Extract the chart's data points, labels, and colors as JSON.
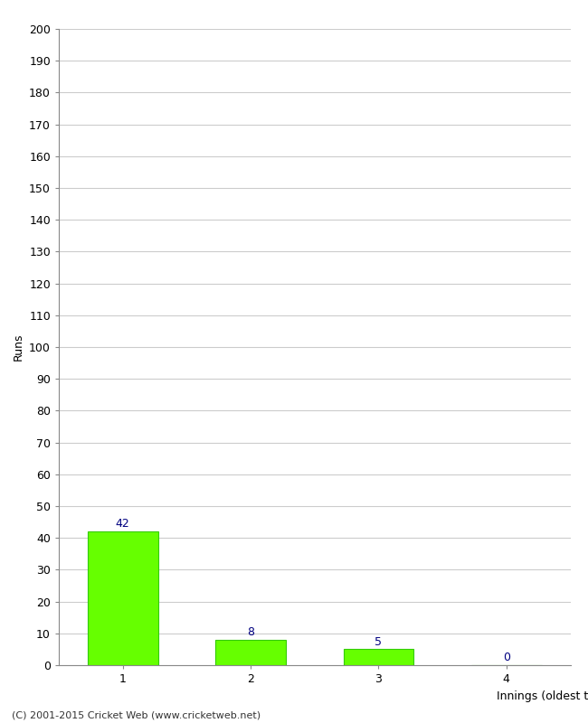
{
  "title": "",
  "categories": [
    1,
    2,
    3,
    4
  ],
  "values": [
    42,
    8,
    5,
    0
  ],
  "bar_color": "#66ff00",
  "bar_edge_color": "#33cc00",
  "label_color": "#000080",
  "ylabel": "Runs",
  "xlabel": "Innings (oldest to newest)",
  "ylim": [
    0,
    200
  ],
  "yticks": [
    0,
    10,
    20,
    30,
    40,
    50,
    60,
    70,
    80,
    90,
    100,
    110,
    120,
    130,
    140,
    150,
    160,
    170,
    180,
    190,
    200
  ],
  "footer": "(C) 2001-2015 Cricket Web (www.cricketweb.net)",
  "background_color": "#ffffff",
  "grid_color": "#cccccc",
  "bar_width": 0.55
}
